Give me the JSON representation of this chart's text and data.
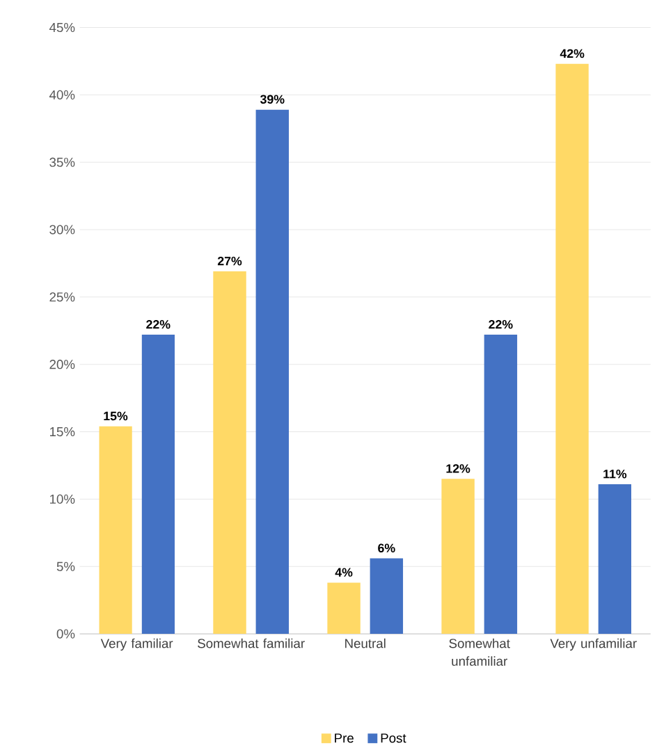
{
  "chart_data": {
    "type": "bar",
    "categories": [
      "Very familiar",
      "Somewhat familiar",
      "Neutral",
      "Somewhat unfamiliar",
      "Very unfamiliar"
    ],
    "series": [
      {
        "name": "Pre",
        "color": "#ffd966",
        "values": [
          15.4,
          26.9,
          3.8,
          11.5,
          42.3
        ],
        "value_labels": [
          "15%",
          "27%",
          "4%",
          "12%",
          "42%"
        ]
      },
      {
        "name": "Post",
        "color": "#4472c4",
        "values": [
          22.2,
          38.9,
          5.6,
          22.2,
          11.1
        ],
        "value_labels": [
          "22%",
          "39%",
          "6%",
          "22%",
          "11%"
        ]
      }
    ],
    "ylim": [
      0,
      45
    ],
    "yticks": [
      {
        "value": 0,
        "label": "0%"
      },
      {
        "value": 5,
        "label": "5%"
      },
      {
        "value": 10,
        "label": "10%"
      },
      {
        "value": 15,
        "label": "15%"
      },
      {
        "value": 20,
        "label": "20%"
      },
      {
        "value": 25,
        "label": "25%"
      },
      {
        "value": 30,
        "label": "30%"
      },
      {
        "value": 35,
        "label": "35%"
      },
      {
        "value": 40,
        "label": "40%"
      },
      {
        "value": 45,
        "label": "45%"
      }
    ],
    "grid": "y",
    "legend": "bottom"
  }
}
